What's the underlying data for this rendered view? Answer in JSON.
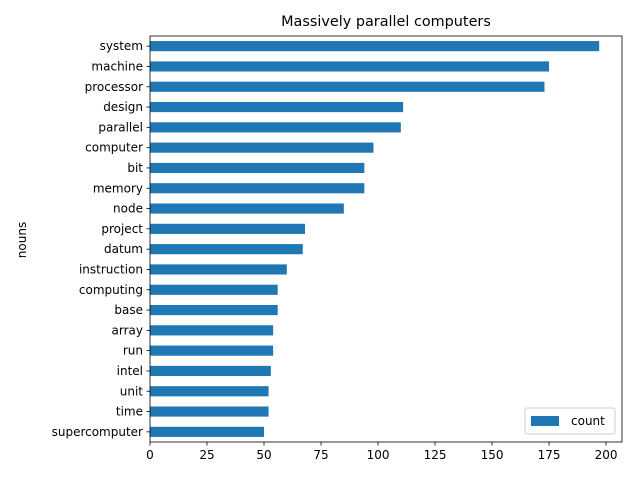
{
  "chart_data": {
    "type": "bar",
    "orientation": "horizontal",
    "title": "Massively parallel computers",
    "xlabel": "",
    "ylabel": "nouns",
    "categories": [
      "system",
      "machine",
      "processor",
      "design",
      "parallel",
      "computer",
      "bit",
      "memory",
      "node",
      "project",
      "datum",
      "instruction",
      "computing",
      "base",
      "array",
      "run",
      "intel",
      "unit",
      "time",
      "supercomputer"
    ],
    "series": [
      {
        "name": "count",
        "values": [
          197,
          175,
          173,
          111,
          110,
          98,
          94,
          94,
          85,
          68,
          67,
          60,
          56,
          56,
          54,
          54,
          53,
          52,
          52,
          50
        ]
      }
    ],
    "xlim": [
      0,
      207
    ],
    "xticks": [
      0,
      25,
      50,
      75,
      100,
      125,
      150,
      175,
      200
    ],
    "grid": false,
    "legend_position": "lower right",
    "bar_color": "#1f77b4"
  }
}
